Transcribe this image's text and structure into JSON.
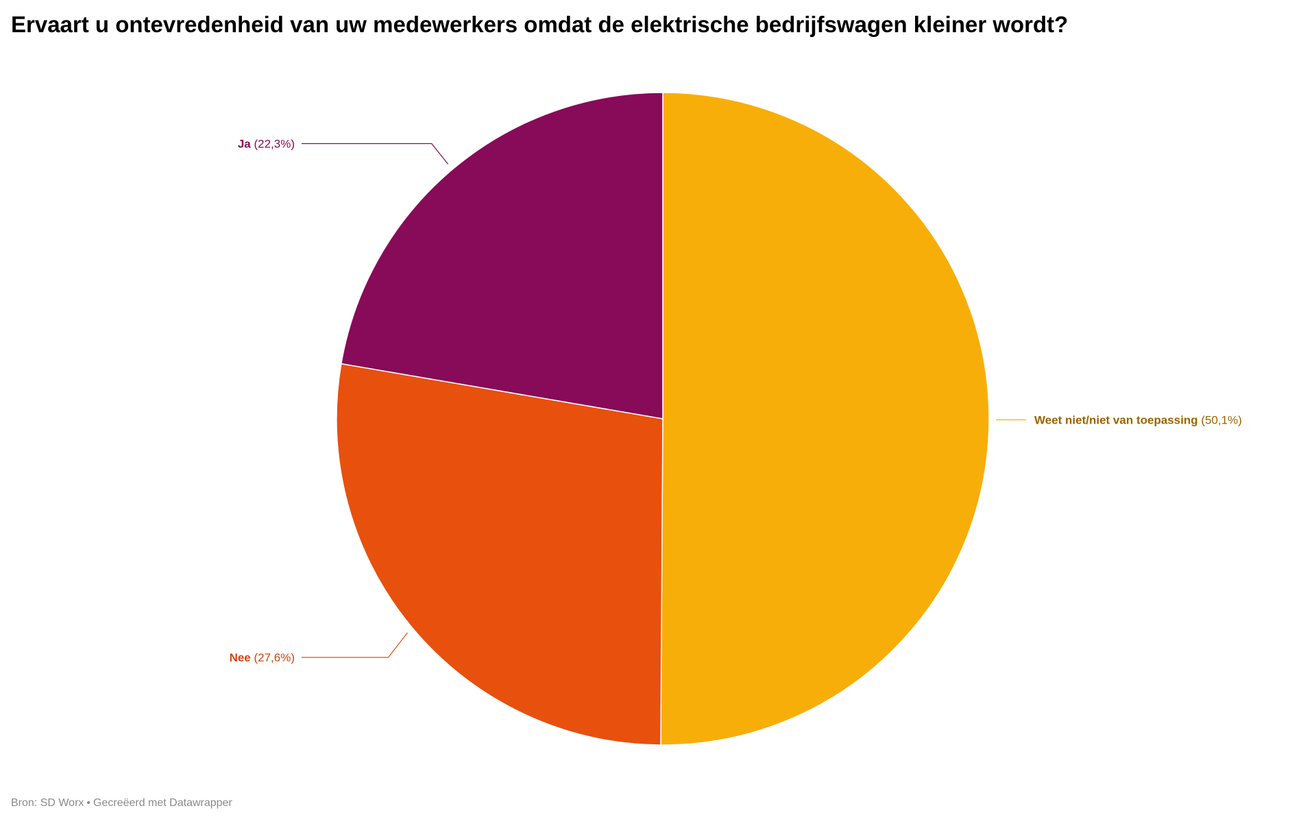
{
  "chart_data": {
    "type": "pie",
    "title": "Ervaart u ontevredenheid van uw medewerkers omdat de elektrische bedrijfswagen kleiner wordt?",
    "start_angle_deg": 0,
    "direction": "clockwise",
    "slices": [
      {
        "label": "Weet niet/niet van toepassing",
        "value": 50.1,
        "value_text": "(50,1%)",
        "color": "#f8ae08",
        "label_color": "#9a6400",
        "label_side": "right"
      },
      {
        "label": "Nee",
        "value": 27.6,
        "value_text": "(27,6%)",
        "color": "#e8500e",
        "label_color": "#d5450a",
        "label_side": "left"
      },
      {
        "label": "Ja",
        "value": 22.3,
        "value_text": "(22,3%)",
        "color": "#870b58",
        "label_color": "#870b58",
        "label_side": "left"
      }
    ]
  },
  "footer": {
    "source": "Bron: SD Worx",
    "separator": "•",
    "credit": "Gecreëerd met Datawrapper"
  }
}
